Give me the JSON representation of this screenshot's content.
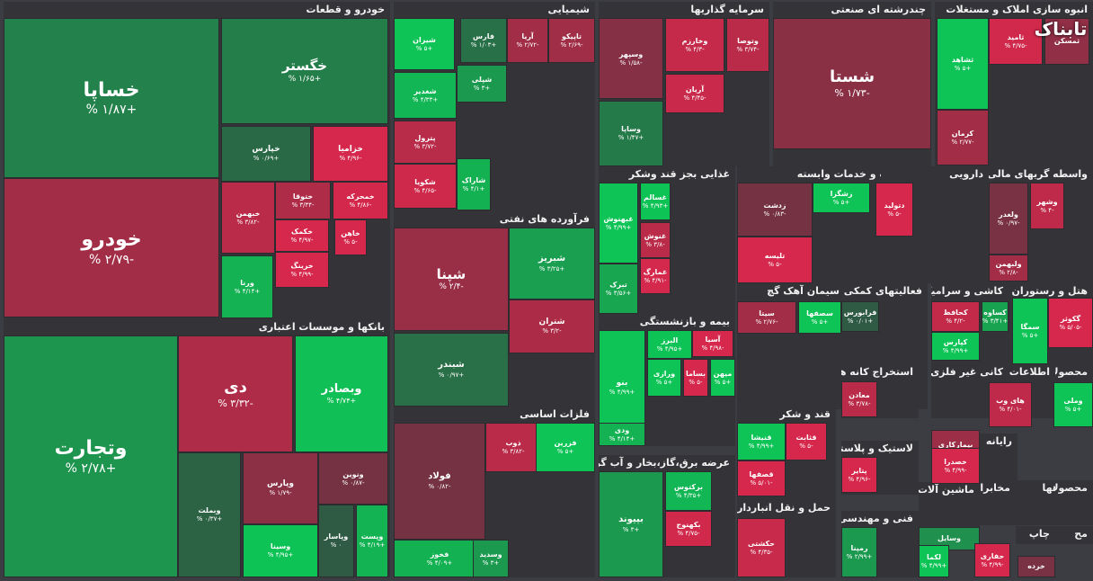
{
  "chart_data": {
    "type": "treemap",
    "sectors": [
      {
        "name": "خودرو و قطعات"
      },
      {
        "name": "شیمیایی"
      },
      {
        "name": "سرمایه گذاریها"
      },
      {
        "name": "چندرشته ای صنعتی"
      },
      {
        "name": "انبوه سازی املاک و مستغلات"
      },
      {
        "name": "بانکها و موسسات اعتباری"
      },
      {
        "name": "فرآورده های نفتی"
      },
      {
        "name": "غذایی بجز قند وشکر"
      },
      {
        "name": "زراعت و خدمات وابسته"
      },
      {
        "name": "دارویی"
      },
      {
        "name": "واسطه گریهای مالی و"
      },
      {
        "name": "سیمان آهک گچ"
      },
      {
        "name": "فعالیتهای کمکی به"
      },
      {
        "name": "کاشی و سرامیک"
      },
      {
        "name": "هتل و رستوران"
      },
      {
        "name": "بیمه و بازنشستگی"
      },
      {
        "name": "استخراج کانه های"
      },
      {
        "name": "کانی غیر فلزی"
      },
      {
        "name": "اطلاعات و"
      },
      {
        "name": "محصولات"
      },
      {
        "name": "فلزات اساسی"
      },
      {
        "name": "قند و شکر"
      },
      {
        "name": "لاستیک و پلاستیک"
      },
      {
        "name": "رایانه"
      },
      {
        "name": "عرضه برق،گاز،بخار و آب گرم"
      },
      {
        "name": "ماشین آلات و"
      },
      {
        "name": "مخابرات"
      },
      {
        "name": "دستگاهها"
      },
      {
        "name": "حمل و نقل انبارداری و"
      },
      {
        "name": "فنی و مهندسی"
      },
      {
        "name": "محصولا"
      },
      {
        "name": "مح"
      },
      {
        "name": "چاپ"
      }
    ],
    "tiles": [
      {
        "name": "خساپا",
        "change": "+۱/۸۷ %",
        "value": 1.87
      },
      {
        "name": "خودرو",
        "change": "-۲/۷۹ %",
        "value": -2.79
      },
      {
        "name": "خگستر",
        "change": "+۱/۶۵ %",
        "value": 1.65
      },
      {
        "name": "خپارس",
        "change": "+۰/۶۹ %",
        "value": 0.69
      },
      {
        "name": "خزامیا",
        "change": "-۴/۹۶ %",
        "value": -4.96
      },
      {
        "name": "خبهمن",
        "change": "-۳/۸۲ %",
        "value": -3.82
      },
      {
        "name": "ختوقا",
        "change": "-۳/۳۴ %",
        "value": -3.34
      },
      {
        "name": "خمحرکه",
        "change": "-۴/۸۶ %",
        "value": -4.86
      },
      {
        "name": "خکمک",
        "change": "-۴/۹۷ %",
        "value": -4.97
      },
      {
        "name": "خاهن",
        "change": "-۵ %",
        "value": -5
      },
      {
        "name": "خرینگ",
        "change": "-۴/۹۹ %",
        "value": -4.99
      },
      {
        "name": "ورنا",
        "change": "+۴/۱۴ %",
        "value": 4.14
      },
      {
        "name": "وتجارت",
        "change": "+۲/۷۸ %",
        "value": 2.78
      },
      {
        "name": "دی",
        "change": "-۳/۳۲ %",
        "value": -3.32
      },
      {
        "name": "وبصادر",
        "change": "+۴/۷۴ %",
        "value": 4.74
      },
      {
        "name": "وپارس",
        "change": "-۱/۷۹ %",
        "value": -1.79
      },
      {
        "name": "ونوین",
        "change": "-۰/۸۷ %",
        "value": -0.87
      },
      {
        "name": "وبملت",
        "change": "+۰/۳۷ %",
        "value": 0.37
      },
      {
        "name": "وپاسار",
        "change": "۰ %",
        "value": 0
      },
      {
        "name": "وپست",
        "change": "+۴/۱۹ %",
        "value": 4.19
      },
      {
        "name": "وسینا",
        "change": "+۴/۹۵ %",
        "value": 4.95
      },
      {
        "name": "شیران",
        "change": "+۵ %",
        "value": 5
      },
      {
        "name": "فارس",
        "change": "+۱/۰۳ %",
        "value": 1.03
      },
      {
        "name": "آریا",
        "change": "-۲/۷۲ %",
        "value": -2.72
      },
      {
        "name": "تاپیکو",
        "change": "-۲/۶۹ %",
        "value": -2.69
      },
      {
        "name": "شغدیر",
        "change": "+۴/۳۳ %",
        "value": 4.33
      },
      {
        "name": "شپلی",
        "change": "+۳ %",
        "value": 3
      },
      {
        "name": "پترول",
        "change": "-۳/۷۲ %",
        "value": -3.72
      },
      {
        "name": "شکویا",
        "change": "-۴/۶۵ %",
        "value": -4.65
      },
      {
        "name": "شاراک",
        "change": "+۴/۱ %",
        "value": 4.1
      },
      {
        "name": "شپنا",
        "change": "-۲/۴ %",
        "value": -2.4
      },
      {
        "name": "شبریز",
        "change": "+۳/۲۵ %",
        "value": 3.25
      },
      {
        "name": "شتران",
        "change": "-۳/۲ %",
        "value": -3.2
      },
      {
        "name": "شبندر",
        "change": "+۰/۹۷ %",
        "value": 0.97
      },
      {
        "name": "وسپهر",
        "change": "-۱/۵۸ %",
        "value": -1.58
      },
      {
        "name": "وخارزم",
        "change": "-۴/۳ %",
        "value": -4.3
      },
      {
        "name": "وتوصا",
        "change": "-۳/۷۴ %",
        "value": -3.74
      },
      {
        "name": "آریان",
        "change": "-۴/۴۵ %",
        "value": -4.45
      },
      {
        "name": "وساپا",
        "change": "+۱/۴۷ %",
        "value": 1.47
      },
      {
        "name": "شستا",
        "change": "-۱/۷۳ %",
        "value": -1.73
      },
      {
        "name": "ثامید",
        "change": "-۴/۷۵ %",
        "value": -4.75
      },
      {
        "name": "ثشاهد",
        "change": "+۵ %",
        "value": 5
      },
      {
        "name": "ثمسکن",
        "change": "",
        "value": -2
      },
      {
        "name": "کرمان",
        "change": "-۲/۷۷ %",
        "value": -2.77
      },
      {
        "name": "غبهنوش",
        "change": "+۴/۹۹ %",
        "value": 4.99
      },
      {
        "name": "غسالم",
        "change": "+۴/۹۳ %",
        "value": 4.93
      },
      {
        "name": "غنوش",
        "change": "-۳/۸ %",
        "value": -3.8
      },
      {
        "name": "غمارگ",
        "change": "-۴/۹۱ %",
        "value": -4.91
      },
      {
        "name": "تبرک",
        "change": "+۳/۵۶ %",
        "value": 3.56
      },
      {
        "name": "زدشت",
        "change": "-۰/۸۳ %",
        "value": -0.83
      },
      {
        "name": "زشگزا",
        "change": "+۵ %",
        "value": 5
      },
      {
        "name": "تلیسه",
        "change": "-۵ %",
        "value": -5
      },
      {
        "name": "دتولید",
        "change": "-۵ %",
        "value": -5
      },
      {
        "name": "ولغدر",
        "change": "-۰/۹۷ %",
        "value": -0.97
      },
      {
        "name": "وشهر",
        "change": "-۴ %",
        "value": -4
      },
      {
        "name": "ولبهمن",
        "change": "-۲/۸ %",
        "value": -2.8
      },
      {
        "name": "سیتا",
        "change": "-۲/۷۶ %",
        "value": -2.76
      },
      {
        "name": "سصفها",
        "change": "+۵ %",
        "value": 5
      },
      {
        "name": "فرابورس",
        "change": "+۰/۰۱ %",
        "value": 0.01
      },
      {
        "name": "کحافظ",
        "change": "-۴/۲ %",
        "value": -4.2
      },
      {
        "name": "کساوه",
        "change": "+۳/۴۱ %",
        "value": 3.41
      },
      {
        "name": "کپارس",
        "change": "+۴/۹۹ %",
        "value": 4.99
      },
      {
        "name": "سمگا",
        "change": "+۵ %",
        "value": 5
      },
      {
        "name": "گکوثر",
        "change": "-۵/۰۵ %",
        "value": -5.05
      },
      {
        "name": "البرز",
        "change": "+۴/۹۵ %",
        "value": 4.95
      },
      {
        "name": "آسیا",
        "change": "-۴/۹۸ %",
        "value": -4.98
      },
      {
        "name": "بنو",
        "change": "+۴/۹۹ %",
        "value": 4.99
      },
      {
        "name": "ورازی",
        "change": "+۵ %",
        "value": 5
      },
      {
        "name": "بساما",
        "change": "-۵ %",
        "value": -5
      },
      {
        "name": "میهن",
        "change": "+۵ %",
        "value": 5
      },
      {
        "name": "ودی",
        "change": "+۴/۱۴ %",
        "value": 4.14
      },
      {
        "name": "ذوب",
        "change": "-۳/۸۲ %",
        "value": -3.82
      },
      {
        "name": "فزرین",
        "change": "+۵ %",
        "value": 5
      },
      {
        "name": "فولاد",
        "change": "-۰/۸۲ %",
        "value": -0.82
      },
      {
        "name": "فخوز",
        "change": "+۴/۰۹ %",
        "value": 4.09
      },
      {
        "name": "وسدید",
        "change": "+۳ %",
        "value": 3
      },
      {
        "name": "معادن",
        "change": "-۳/۷۸ %",
        "value": -3.78
      },
      {
        "name": "قنیشا",
        "change": "+۴/۹۹ %",
        "value": 4.99
      },
      {
        "name": "قثابت",
        "change": "-۵ %",
        "value": -5
      },
      {
        "name": "قصفها",
        "change": "-۵/۰۱ %",
        "value": -5.01
      },
      {
        "name": "پتایر",
        "change": "-۴/۹۶ %",
        "value": -4.96
      },
      {
        "name": "بیمارکاری",
        "change": "",
        "value": -2.5
      },
      {
        "name": "خصدرا",
        "change": "-۴/۹۹ %",
        "value": -4.99
      },
      {
        "name": "های وب",
        "change": "-۴/۰۱ %",
        "value": -4.01
      },
      {
        "name": "وملی",
        "change": "+۵ %",
        "value": 5
      },
      {
        "name": "بپیوند",
        "change": "+۳ %",
        "value": 3
      },
      {
        "name": "برکتوس",
        "change": "+۴/۳۵ %",
        "value": 4.35
      },
      {
        "name": "بکهنوج",
        "change": "-۴/۷۵ %",
        "value": -4.75
      },
      {
        "name": "حکشتی",
        "change": "-۴/۳۵ %",
        "value": -4.35
      },
      {
        "name": "رمپنا",
        "change": "+۲/۹۹ %",
        "value": 2.99
      },
      {
        "name": "وسایل",
        "change": "",
        "value": 2.5
      },
      {
        "name": "لکما",
        "change": "+۴/۹۹ %",
        "value": 4.99
      },
      {
        "name": "حفاری",
        "change": "-۴/۹۹ %",
        "value": -4.99
      },
      {
        "name": "خرده",
        "change": "",
        "value": -1
      }
    ]
  }
}
